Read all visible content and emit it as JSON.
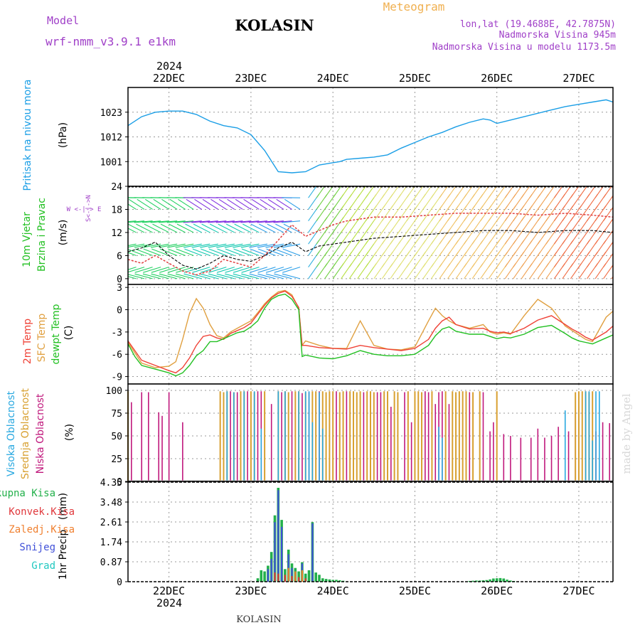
{
  "header": {
    "model_label": "Model",
    "model_value": "wrf-nmm_v3.9.1 e1km",
    "station": "KOLASIN",
    "product": "Meteogram",
    "coords": "lon,lat (19.4688E, 42.7875N)",
    "elevation": "Nadmorska Visina 945m",
    "model_elevation": "Nadmorska Visina u modelu 1173.5m",
    "year_top": "2024",
    "year_bottom": "2024",
    "footer_station": "KOLASIN",
    "watermark": "made by Angel"
  },
  "colors": {
    "pressure": "#1a9ee6",
    "temp2m": "#ef4136",
    "sfctemp": "#e0a040",
    "dewpoint": "#22c022",
    "cloud_high": "#28a8e0",
    "cloud_mid": "#d8a030",
    "cloud_low": "#c0187c",
    "precip_total": "#22b04a",
    "precip_conv": "#e0383c",
    "precip_frz": "#f08030",
    "precip_snow": "#4050d8",
    "precip_grad": "#20c8c0",
    "purple": "#a040c8",
    "orange_title": "#f0b050"
  },
  "chart_data": [
    {
      "panel": "pressure",
      "type": "line",
      "title": "",
      "ylabel_lines": [
        "Pritisak na nivou mora",
        "(hPa)"
      ],
      "ylim": [
        990,
        1034
      ],
      "yticks": [
        1001,
        1012,
        1023
      ],
      "x_days": [
        "22DEC",
        "23DEC",
        "24DEC",
        "25DEC",
        "26DEC",
        "27DEC"
      ],
      "x": [
        0,
        4,
        8,
        12,
        16,
        20,
        24,
        28,
        32,
        36,
        40,
        44,
        48,
        52,
        54,
        56,
        60,
        62,
        64,
        68,
        72,
        76,
        80,
        84,
        88,
        92,
        96,
        100,
        104,
        106,
        108,
        112,
        116,
        120,
        124,
        128,
        132,
        136,
        140,
        142
      ],
      "values": [
        1017,
        1021,
        1023,
        1023.5,
        1023.5,
        1022,
        1019,
        1017,
        1016,
        1013,
        1006,
        996.5,
        996,
        996.5,
        998,
        999.5,
        1000.5,
        1001,
        1002,
        1002.5,
        1003,
        1004,
        1007,
        1009.5,
        1012,
        1014,
        1016.5,
        1018.5,
        1020,
        1019.5,
        1018,
        1019.5,
        1021,
        1022.5,
        1024,
        1025.5,
        1026.5,
        1027.5,
        1028.5,
        1027.5
      ],
      "grid": true
    },
    {
      "panel": "wind",
      "type": "line",
      "title": "",
      "ylabel_lines": [
        "10m Vjetar",
        "Brzina i Pravac",
        "(m/s)"
      ],
      "direction_legend": "W <-|-> E",
      "direction_legend_v": "S<-|->N",
      "ylim": [
        -1.5,
        24
      ],
      "yticks": [
        0,
        6,
        12,
        18,
        24
      ],
      "x": [
        0,
        4,
        8,
        12,
        16,
        20,
        24,
        28,
        32,
        36,
        40,
        44,
        48,
        52,
        56,
        60,
        64,
        68,
        72,
        80,
        88,
        96,
        104,
        112,
        120,
        128,
        136,
        142
      ],
      "series": [
        {
          "name": "mean",
          "values": [
            7,
            8,
            9.5,
            6,
            3.5,
            2.5,
            4,
            6,
            5,
            4.5,
            6,
            8,
            9.5,
            7,
            8.5,
            9,
            9.5,
            10,
            10.5,
            11,
            11.5,
            12,
            12.5,
            12.5,
            12,
            12.5,
            12.5,
            12
          ]
        },
        {
          "name": "gust",
          "values": [
            5,
            4,
            6,
            4,
            2,
            1,
            2,
            5,
            4,
            3,
            6,
            10,
            14,
            11,
            12.5,
            14,
            15,
            15.5,
            16,
            16,
            16.5,
            17,
            17,
            17,
            16.5,
            17,
            16.5,
            16
          ]
        }
      ],
      "grid": true
    },
    {
      "panel": "temperature",
      "type": "line",
      "title": "",
      "ylabel_lines": [
        "2m Temp",
        "SFC Temp",
        "dewpt Temp",
        "(C)"
      ],
      "ylim": [
        -10,
        3.4
      ],
      "yticks": [
        -9,
        -6,
        -3,
        0,
        3
      ],
      "x": [
        0,
        2,
        4,
        8,
        12,
        14,
        16,
        18,
        20,
        22,
        24,
        26,
        28,
        30,
        32,
        34,
        36,
        38,
        40,
        42,
        44,
        46,
        48,
        50,
        51,
        52,
        56,
        60,
        64,
        68,
        72,
        76,
        80,
        84,
        88,
        90,
        92,
        94,
        96,
        100,
        104,
        106,
        108,
        110,
        112,
        116,
        120,
        124,
        128,
        130,
        132,
        134,
        136,
        140,
        142
      ],
      "series": [
        {
          "name": "2m Temp",
          "values": [
            -4.2,
            -5.5,
            -6.8,
            -7.5,
            -8.2,
            -8.5,
            -7.8,
            -6.5,
            -4.8,
            -3.6,
            -3.4,
            -3.8,
            -4.0,
            -3.2,
            -2.8,
            -2.4,
            -1.8,
            -0.6,
            0.6,
            1.6,
            2.2,
            2.5,
            1.8,
            0.3,
            -4.8,
            -4.8,
            -5.1,
            -5.2,
            -5.3,
            -4.8,
            -5.1,
            -5.3,
            -5.5,
            -5.2,
            -4.0,
            -2.5,
            -1.5,
            -1.0,
            -2.0,
            -2.6,
            -2.5,
            -2.9,
            -3.1,
            -3.0,
            -3.2,
            -2.5,
            -1.4,
            -0.8,
            -2.0,
            -2.6,
            -3.1,
            -3.7,
            -4.1,
            -3.0,
            -2.2
          ]
        },
        {
          "name": "SFC Temp",
          "values": [
            -4.4,
            -5.8,
            -7.2,
            -7.8,
            -7.6,
            -7.0,
            -4.0,
            -0.5,
            1.5,
            0.2,
            -2.0,
            -3.5,
            -3.8,
            -3.0,
            -2.5,
            -2.0,
            -1.5,
            -0.4,
            0.8,
            1.7,
            2.4,
            2.6,
            2.0,
            0.2,
            -4.8,
            -4.2,
            -4.8,
            -5.2,
            -5.2,
            -1.5,
            -4.8,
            -5.3,
            -5.4,
            -5.0,
            -1.5,
            0.2,
            -0.8,
            -1.5,
            -2.0,
            -2.5,
            -2.0,
            -3.0,
            -3.3,
            -3.1,
            -3.3,
            -0.8,
            1.4,
            0.2,
            -2.2,
            -2.8,
            -3.4,
            -4.0,
            -4.3,
            -1.0,
            -0.2
          ]
        },
        {
          "name": "dewpt Temp",
          "values": [
            -4.6,
            -6.3,
            -7.5,
            -8.0,
            -8.5,
            -8.9,
            -8.5,
            -7.5,
            -6.2,
            -5.5,
            -4.3,
            -4.3,
            -3.9,
            -3.5,
            -3.1,
            -2.9,
            -2.3,
            -1.5,
            0.2,
            1.4,
            1.9,
            2.1,
            1.4,
            0.0,
            -6.3,
            -6.1,
            -6.5,
            -6.6,
            -6.2,
            -5.5,
            -6.0,
            -6.2,
            -6.2,
            -6.0,
            -4.8,
            -3.5,
            -2.6,
            -2.3,
            -2.9,
            -3.3,
            -3.3,
            -3.6,
            -3.9,
            -3.7,
            -3.8,
            -3.3,
            -2.4,
            -2.1,
            -3.2,
            -3.8,
            -4.2,
            -4.4,
            -4.6,
            -3.8,
            -3.4
          ]
        }
      ],
      "grid": true
    },
    {
      "panel": "clouds",
      "type": "bar",
      "title": "",
      "ylabel_lines": [
        "Visoka Oblacnost",
        "Srednja Oblacnost",
        "Niska Oblacnost",
        "(%)"
      ],
      "ylim": [
        0,
        100
      ],
      "yticks": [
        0,
        25,
        50,
        75,
        100
      ],
      "series": [
        {
          "name": "Niska Oblacnost",
          "x": [
            1,
            4,
            6,
            9,
            10,
            12,
            16,
            30,
            32,
            35,
            38,
            39,
            42,
            45,
            48,
            51,
            53,
            56,
            61,
            64,
            69,
            73,
            74,
            77,
            81,
            83,
            87,
            88,
            90,
            91,
            92,
            94,
            100,
            104,
            106,
            107,
            110,
            112,
            115,
            118,
            120,
            122,
            124,
            126,
            129,
            131,
            132,
            135,
            137,
            139,
            141
          ],
          "values": [
            87,
            98,
            98,
            76,
            72,
            98,
            65,
            99,
            98,
            99,
            99,
            99,
            85,
            98,
            99,
            97,
            98,
            99,
            99,
            99,
            98,
            98,
            98,
            82,
            98,
            65,
            99,
            98,
            85,
            98,
            99,
            85,
            98,
            98,
            55,
            65,
            52,
            50,
            48,
            48,
            58,
            48,
            50,
            60,
            55,
            75,
            82,
            50,
            55,
            65,
            64
          ]
        },
        {
          "name": "Srednja Oblacnost",
          "x": [
            0,
            27,
            28,
            29,
            31,
            33,
            34,
            36,
            37,
            40,
            44,
            46,
            47,
            49,
            50,
            52,
            54,
            55,
            57,
            58,
            59,
            60,
            62,
            63,
            65,
            66,
            67,
            68,
            70,
            71,
            72,
            75,
            76,
            78,
            79,
            82,
            84,
            85,
            86,
            89,
            93,
            95,
            96,
            97,
            98,
            99,
            101,
            103,
            108,
            131,
            132,
            133,
            134,
            135,
            136
          ],
          "values": [
            99,
            99,
            98,
            99,
            98,
            99,
            99,
            99,
            98,
            99,
            99,
            99,
            98,
            99,
            99,
            98,
            99,
            99,
            99,
            98,
            99,
            99,
            98,
            99,
            99,
            99,
            98,
            99,
            99,
            99,
            98,
            99,
            99,
            99,
            98,
            99,
            99,
            99,
            98,
            99,
            99,
            99,
            98,
            99,
            99,
            99,
            98,
            99,
            99,
            98,
            99,
            99,
            99,
            98,
            99
          ]
        },
        {
          "name": "Visoka Oblacnost",
          "x": [
            29,
            31,
            34,
            37,
            39,
            44,
            46,
            50,
            52,
            53,
            54,
            56,
            57,
            91,
            92,
            128,
            134,
            135,
            136,
            137,
            138
          ],
          "values": [
            99,
            98,
            99,
            99,
            58,
            99,
            99,
            99,
            99,
            99,
            65,
            98,
            58,
            60,
            48,
            78,
            99,
            99,
            45,
            99,
            99
          ]
        }
      ],
      "grid": true
    },
    {
      "panel": "precipitation",
      "type": "bar",
      "title": "",
      "ylabel_lines": [
        "1hr Precip",
        "(mm)"
      ],
      "legend": [
        "Ukupna Kisa",
        "Konvek.Kisa",
        "Zaledj.Kisa",
        "Snijeg",
        "Grad"
      ],
      "ylim": [
        0,
        4.35
      ],
      "yticks": [
        0,
        0.87,
        1.74,
        2.61,
        3.48,
        4.35
      ],
      "series": [
        {
          "name": "Ukupna Kisa",
          "x": [
            38,
            39,
            40,
            41,
            42,
            43,
            44,
            45,
            46,
            47,
            48,
            49,
            50,
            51,
            52,
            53,
            54,
            55,
            56,
            57,
            58,
            59,
            60,
            61,
            62,
            63,
            100,
            101,
            102,
            103,
            104,
            105,
            106,
            107,
            108,
            109,
            110,
            111,
            112,
            113
          ],
          "values": [
            0.15,
            0.5,
            0.45,
            0.7,
            1.3,
            2.9,
            4.1,
            2.7,
            0.55,
            1.4,
            0.8,
            0.6,
            0.45,
            0.85,
            0.35,
            0.5,
            2.6,
            0.4,
            0.3,
            0.15,
            0.12,
            0.1,
            0.08,
            0.08,
            0.06,
            0.04,
            0.03,
            0.04,
            0.05,
            0.05,
            0.06,
            0.07,
            0.1,
            0.14,
            0.15,
            0.16,
            0.14,
            0.09,
            0.05,
            0.03
          ]
        },
        {
          "name": "Snijeg",
          "x": [
            41,
            42,
            43,
            44,
            45,
            47,
            48,
            51,
            54
          ],
          "values": [
            0.55,
            1.0,
            2.6,
            4.0,
            2.4,
            1.2,
            0.6,
            0.8,
            2.55
          ]
        },
        {
          "name": "Konvek.Kisa",
          "x": [
            43,
            44,
            46,
            48,
            50,
            52
          ],
          "values": [
            0.4,
            0.35,
            0.3,
            0.25,
            0.2,
            0.15
          ]
        },
        {
          "name": "Zaledj.Kisa",
          "x": [
            47,
            49,
            51
          ],
          "values": [
            0.6,
            0.45,
            0.5
          ]
        }
      ],
      "grid": true
    }
  ]
}
